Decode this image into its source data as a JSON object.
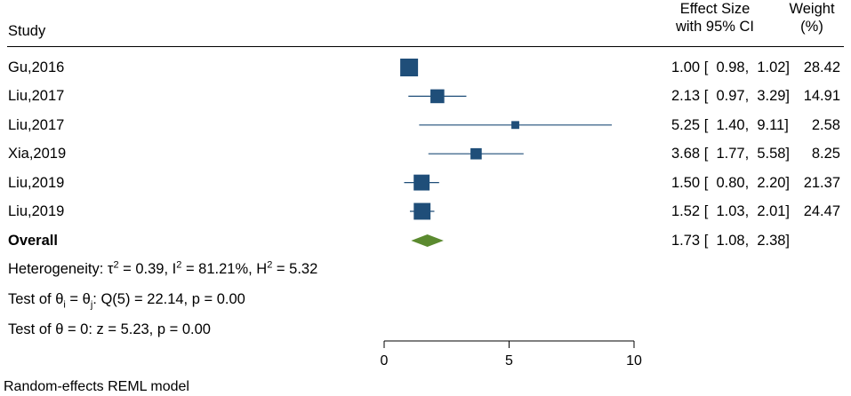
{
  "header": {
    "study": "Study",
    "effect_line1": "Effect Size",
    "effect_line2": "with 95% CI",
    "weight_line1": "Weight",
    "weight_line2": "(%)"
  },
  "colors": {
    "marker": "#1f4e79",
    "diamond": "#5b8a2f"
  },
  "chart_data": {
    "type": "forest",
    "studies": [
      {
        "label": "Gu,2016",
        "es": 1.0,
        "lo": 0.98,
        "hi": 1.02,
        "weight": 28.42,
        "ci_text": "1.00 [  0.98,  1.02]",
        "weight_text": "28.42"
      },
      {
        "label": "Liu,2017",
        "es": 2.13,
        "lo": 0.97,
        "hi": 3.29,
        "weight": 14.91,
        "ci_text": "2.13 [  0.97,  3.29]",
        "weight_text": "14.91"
      },
      {
        "label": "Liu,2017",
        "es": 5.25,
        "lo": 1.4,
        "hi": 9.11,
        "weight": 2.58,
        "ci_text": "5.25 [  1.40,  9.11]",
        "weight_text": "2.58"
      },
      {
        "label": "Xia,2019",
        "es": 3.68,
        "lo": 1.77,
        "hi": 5.58,
        "weight": 8.25,
        "ci_text": "3.68 [  1.77,  5.58]",
        "weight_text": "8.25"
      },
      {
        "label": "Liu,2019",
        "es": 1.5,
        "lo": 0.8,
        "hi": 2.2,
        "weight": 21.37,
        "ci_text": "1.50 [  0.80,  2.20]",
        "weight_text": "21.37"
      },
      {
        "label": "Liu,2019",
        "es": 1.52,
        "lo": 1.03,
        "hi": 2.01,
        "weight": 24.47,
        "ci_text": "1.52 [  1.03,  2.01]",
        "weight_text": "24.47"
      }
    ],
    "overall": {
      "label": "Overall",
      "es": 1.73,
      "lo": 1.08,
      "hi": 2.38,
      "ci_text": "1.73 [  1.08,  2.38]"
    },
    "xlim": [
      0,
      10
    ],
    "xticks": [
      0,
      5,
      10
    ],
    "xtick_labels": [
      "0",
      "5",
      "10"
    ]
  },
  "stats": {
    "heterogeneity": {
      "prefix": "Heterogeneity: ",
      "tau": "τ",
      "tau_sup": "2",
      "i_part": " = 0.39, I",
      "i_sup": "2",
      "h_part": " = 81.21%, H",
      "h_sup": "2",
      "end": " = 5.32"
    },
    "test_equal": {
      "prefix": "Test of ",
      "theta_i": "θ",
      "sub_i": "i",
      "eq": " = ",
      "theta_j": "θ",
      "sub_j": "j",
      "end": ": Q(5) = 22.14, p = 0.00"
    },
    "test_zero": "Test of θ = 0: z = 5.23, p = 0.00"
  },
  "footer": "Random-effects REML model"
}
